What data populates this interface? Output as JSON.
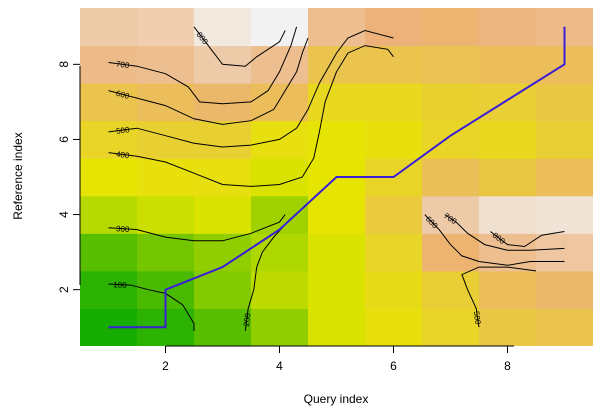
{
  "chart_data": {
    "type": "heatmap",
    "xlabel": "Query index",
    "ylabel": "Reference index",
    "xlim": [
      0.5,
      9.5
    ],
    "ylim": [
      0.5,
      9.5
    ],
    "x_ticks": [
      2,
      4,
      6,
      8
    ],
    "y_ticks": [
      2,
      4,
      6,
      8
    ],
    "x": [
      1,
      2,
      3,
      4,
      5,
      6,
      7,
      8,
      9
    ],
    "y": [
      1,
      2,
      3,
      4,
      5,
      6,
      7,
      8,
      9
    ],
    "values": [
      [
        30,
        60,
        120,
        200,
        300,
        350,
        420,
        500,
        520
      ],
      [
        60,
        100,
        180,
        260,
        300,
        380,
        460,
        560,
        600
      ],
      [
        120,
        160,
        200,
        240,
        300,
        420,
        620,
        700,
        740
      ],
      [
        250,
        280,
        300,
        220,
        320,
        480,
        760,
        860,
        880
      ],
      [
        320,
        350,
        360,
        300,
        320,
        420,
        550,
        500,
        560
      ],
      [
        420,
        450,
        450,
        360,
        330,
        350,
        420,
        400,
        460
      ],
      [
        520,
        560,
        600,
        560,
        400,
        400,
        440,
        460,
        500
      ],
      [
        680,
        700,
        760,
        700,
        520,
        520,
        540,
        560,
        560
      ],
      [
        760,
        780,
        900,
        950,
        700,
        640,
        620,
        660,
        680
      ]
    ],
    "color_scale": {
      "low": "#00a600",
      "mid": "#e6e600",
      "mid2": "#ecb176",
      "high": "#f2f2f2",
      "range": [
        0,
        950
      ]
    },
    "contours": [
      {
        "level": 100,
        "label": "100",
        "points": [
          [
            1.0,
            2.15
          ],
          [
            1.4,
            2.12
          ],
          [
            1.7,
            2.0
          ],
          [
            2.0,
            1.9
          ],
          [
            2.3,
            1.6
          ],
          [
            2.5,
            1.1
          ],
          [
            2.5,
            0.9
          ]
        ]
      },
      {
        "level": 200,
        "label": "200",
        "points": [
          [
            3.4,
            0.9
          ],
          [
            3.45,
            1.5
          ],
          [
            3.55,
            2.0
          ],
          [
            3.6,
            2.6
          ],
          [
            3.7,
            3.0
          ],
          [
            3.9,
            3.4
          ],
          [
            4.2,
            3.9
          ],
          [
            4.3,
            4.0
          ]
        ]
      },
      {
        "level": 300,
        "label": "300",
        "points": [
          [
            1.0,
            3.65
          ],
          [
            1.5,
            3.6
          ],
          [
            2.0,
            3.4
          ],
          [
            2.5,
            3.3
          ],
          [
            3.0,
            3.3
          ],
          [
            3.5,
            3.5
          ],
          [
            4.0,
            3.8
          ],
          [
            4.1,
            4.0
          ]
        ]
      },
      {
        "level": 400,
        "label": "400",
        "points": [
          [
            1.0,
            5.65
          ],
          [
            1.5,
            5.55
          ],
          [
            2.0,
            5.4
          ],
          [
            2.5,
            5.1
          ],
          [
            3.0,
            4.8
          ],
          [
            3.5,
            4.75
          ],
          [
            4.0,
            4.8
          ],
          [
            4.4,
            5.0
          ],
          [
            4.6,
            5.5
          ],
          [
            4.7,
            6.2
          ],
          [
            4.8,
            7.0
          ],
          [
            5.0,
            7.8
          ],
          [
            5.2,
            8.3
          ],
          [
            5.5,
            8.5
          ],
          [
            5.9,
            8.4
          ],
          [
            6.0,
            8.2
          ]
        ]
      },
      {
        "level": 500,
        "label": "500",
        "points": [
          [
            1.0,
            6.2
          ],
          [
            1.5,
            6.3
          ],
          [
            2.0,
            6.1
          ],
          [
            2.5,
            5.9
          ],
          [
            3.0,
            5.8
          ],
          [
            3.5,
            5.85
          ],
          [
            4.0,
            6.0
          ],
          [
            4.3,
            6.3
          ],
          [
            4.5,
            6.8
          ],
          [
            4.7,
            7.5
          ],
          [
            5.0,
            8.3
          ],
          [
            5.2,
            8.7
          ],
          [
            5.5,
            8.9
          ],
          [
            6.0,
            8.7
          ]
        ]
      },
      {
        "level": 500,
        "label": "500",
        "points": [
          [
            7.5,
            1.0
          ],
          [
            7.45,
            1.5
          ],
          [
            7.3,
            2.0
          ],
          [
            7.2,
            2.4
          ],
          [
            7.5,
            2.6
          ],
          [
            8.0,
            2.6
          ],
          [
            8.5,
            2.5
          ]
        ]
      },
      {
        "level": 600,
        "label": "600",
        "points": [
          [
            1.0,
            7.3
          ],
          [
            1.5,
            7.1
          ],
          [
            2.0,
            6.9
          ],
          [
            2.5,
            6.55
          ],
          [
            3.0,
            6.4
          ],
          [
            3.5,
            6.5
          ],
          [
            3.9,
            6.8
          ],
          [
            4.1,
            7.3
          ],
          [
            4.3,
            7.8
          ],
          [
            4.4,
            8.3
          ],
          [
            4.5,
            8.7
          ]
        ]
      },
      {
        "level": 600,
        "label": "600",
        "points": [
          [
            6.55,
            4.0
          ],
          [
            6.8,
            3.6
          ],
          [
            7.0,
            3.2
          ],
          [
            7.2,
            2.9
          ],
          [
            7.5,
            2.75
          ],
          [
            8.0,
            2.65
          ],
          [
            8.4,
            2.75
          ],
          [
            9.0,
            2.75
          ]
        ]
      },
      {
        "level": 700,
        "label": "700",
        "points": [
          [
            1.0,
            8.05
          ],
          [
            1.5,
            7.95
          ],
          [
            2.0,
            7.75
          ],
          [
            2.4,
            7.4
          ],
          [
            2.6,
            7.0
          ],
          [
            3.0,
            6.95
          ],
          [
            3.5,
            7.0
          ],
          [
            3.8,
            7.3
          ],
          [
            4.0,
            7.8
          ],
          [
            4.2,
            8.5
          ],
          [
            4.3,
            9.0
          ]
        ]
      },
      {
        "level": 700,
        "label": "700",
        "points": [
          [
            6.9,
            4.0
          ],
          [
            7.1,
            3.8
          ],
          [
            7.3,
            3.5
          ],
          [
            7.6,
            3.2
          ],
          [
            8.0,
            3.05
          ],
          [
            8.4,
            3.05
          ],
          [
            9.0,
            3.1
          ]
        ]
      },
      {
        "level": 800,
        "label": "800",
        "points": [
          [
            2.5,
            9.0
          ],
          [
            2.8,
            8.4
          ],
          [
            3.0,
            8.0
          ],
          [
            3.4,
            7.95
          ],
          [
            3.6,
            8.2
          ],
          [
            4.0,
            8.6
          ],
          [
            4.1,
            8.9
          ]
        ]
      },
      {
        "level": 800,
        "label": "800",
        "points": [
          [
            7.7,
            3.55
          ],
          [
            8.0,
            3.2
          ],
          [
            8.3,
            3.15
          ],
          [
            8.6,
            3.45
          ],
          [
            9.0,
            3.55
          ]
        ]
      }
    ],
    "warping_path": {
      "color": "#3b1fd6",
      "points": [
        [
          1,
          1
        ],
        [
          2,
          1
        ],
        [
          2,
          2
        ],
        [
          3,
          2.6
        ],
        [
          4,
          3.6
        ],
        [
          5,
          5
        ],
        [
          6,
          5
        ],
        [
          7,
          6.1
        ],
        [
          8,
          7.05
        ],
        [
          9,
          8
        ],
        [
          9,
          9
        ]
      ]
    }
  }
}
